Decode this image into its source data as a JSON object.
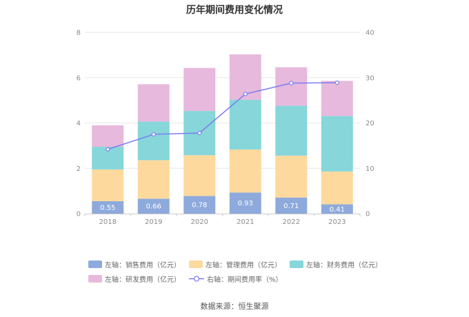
{
  "title": "历年期间费用变化情况",
  "source": "数据来源：恒生聚源",
  "colors": {
    "sales": "#8eaadc",
    "admin": "#fdd99d",
    "finance": "#86d6da",
    "rd": "#e7b9dc",
    "rate_line": "#7b7cf0",
    "grid": "#e6e6e6",
    "axis": "#cccccc"
  },
  "legend": [
    {
      "key": "sales",
      "label": "左轴：销售费用（亿元）",
      "kind": "box"
    },
    {
      "key": "admin",
      "label": "左轴：管理费用（亿元）",
      "kind": "box"
    },
    {
      "key": "finance",
      "label": "左轴：财务费用（亿元）",
      "kind": "box"
    },
    {
      "key": "rd",
      "label": "左轴：研发费用（亿元）",
      "kind": "box"
    },
    {
      "key": "rate_line",
      "label": "右轴：期间费用率（%）",
      "kind": "line"
    }
  ],
  "chart_data": {
    "type": "bar",
    "stacked": true,
    "categories": [
      "2018",
      "2019",
      "2020",
      "2021",
      "2022",
      "2023"
    ],
    "series": [
      {
        "key": "sales",
        "name": "左轴：销售费用（亿元）",
        "values": [
          0.55,
          0.66,
          0.78,
          0.93,
          0.71,
          0.41
        ],
        "labels": [
          "0.55",
          "0.66",
          "0.78",
          "0.93",
          "0.71",
          "0.41"
        ]
      },
      {
        "key": "admin",
        "name": "左轴：管理费用（亿元）",
        "values": [
          1.4,
          1.7,
          1.8,
          1.9,
          1.85,
          1.45
        ]
      },
      {
        "key": "finance",
        "name": "左轴：财务费用（亿元）",
        "values": [
          1.0,
          1.7,
          1.95,
          2.2,
          2.2,
          2.45
        ]
      },
      {
        "key": "rd",
        "name": "左轴：研发费用（亿元）",
        "values": [
          0.95,
          1.65,
          1.9,
          2.0,
          1.7,
          1.55
        ]
      }
    ],
    "line_series": {
      "key": "rate_line",
      "name": "右轴：期间费用率（%）",
      "axis": "right",
      "values": [
        14.2,
        17.5,
        17.8,
        26.4,
        28.8,
        28.9
      ]
    },
    "y_left": {
      "min": 0,
      "max": 8,
      "ticks": [
        "0",
        "2",
        "4",
        "6",
        "8"
      ]
    },
    "y_right": {
      "min": 0,
      "max": 40,
      "ticks": [
        "0",
        "10",
        "20",
        "30",
        "40"
      ]
    },
    "grid": true,
    "legend_position": "bottom"
  }
}
